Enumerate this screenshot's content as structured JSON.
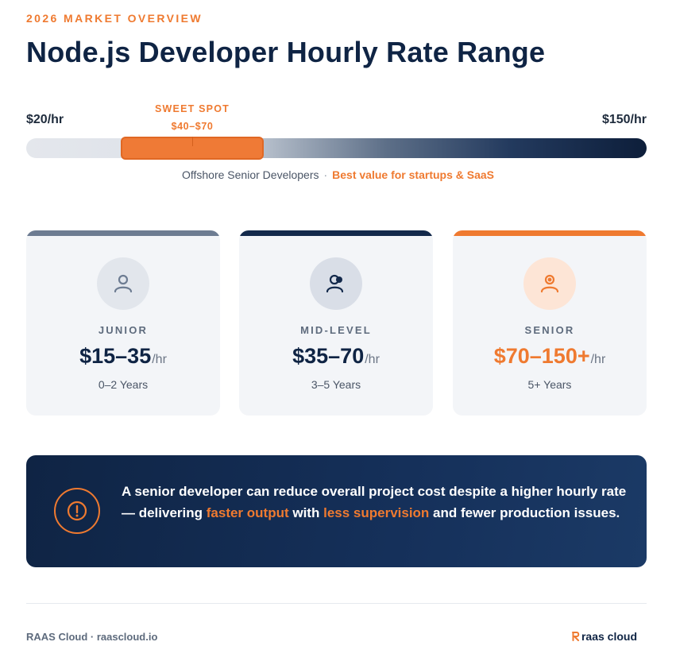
{
  "header": {
    "eyebrow": "2026 MARKET OVERVIEW",
    "title": "Node.js Developer Hourly Rate Range"
  },
  "range": {
    "min_label": "$20/hr",
    "max_label": "$150/hr",
    "min_value": 20,
    "max_value": 150,
    "sweet_spot_label": "SWEET SPOT",
    "sweet_spot_range": "$40–$70",
    "sweet_spot_low": 40,
    "sweet_spot_high": 70,
    "caption_prefix": "Offshore Senior Developers",
    "caption_sep": "·",
    "caption_highlight": "Best value for startups & SaaS"
  },
  "cards": [
    {
      "level": "JUNIOR",
      "rate": "$15–35",
      "unit": "/hr",
      "years": "0–2 Years",
      "icon": "user-icon",
      "accent": "#6d7c92"
    },
    {
      "level": "MID-LEVEL",
      "rate": "$35–70",
      "unit": "/hr",
      "years": "3–5 Years",
      "icon": "user-chat-icon",
      "accent": "#13294b"
    },
    {
      "level": "SENIOR",
      "rate": "$70–150+",
      "unit": "/hr",
      "years": "5+ Years",
      "icon": "user-star-icon",
      "accent": "#ef7a30"
    }
  ],
  "callout": {
    "icon": "alert-icon",
    "text_1": "A senior developer can reduce overall project cost despite a higher hourly rate — delivering ",
    "highlight_1": "faster output",
    "text_2": " with ",
    "highlight_2": "less supervision",
    "text_3": " and fewer production issues."
  },
  "footer": {
    "left": "RAAS Cloud · raascloud.io",
    "brand": "raas cloud"
  },
  "colors": {
    "accent": "#ef7a30",
    "navy": "#0f2444"
  }
}
